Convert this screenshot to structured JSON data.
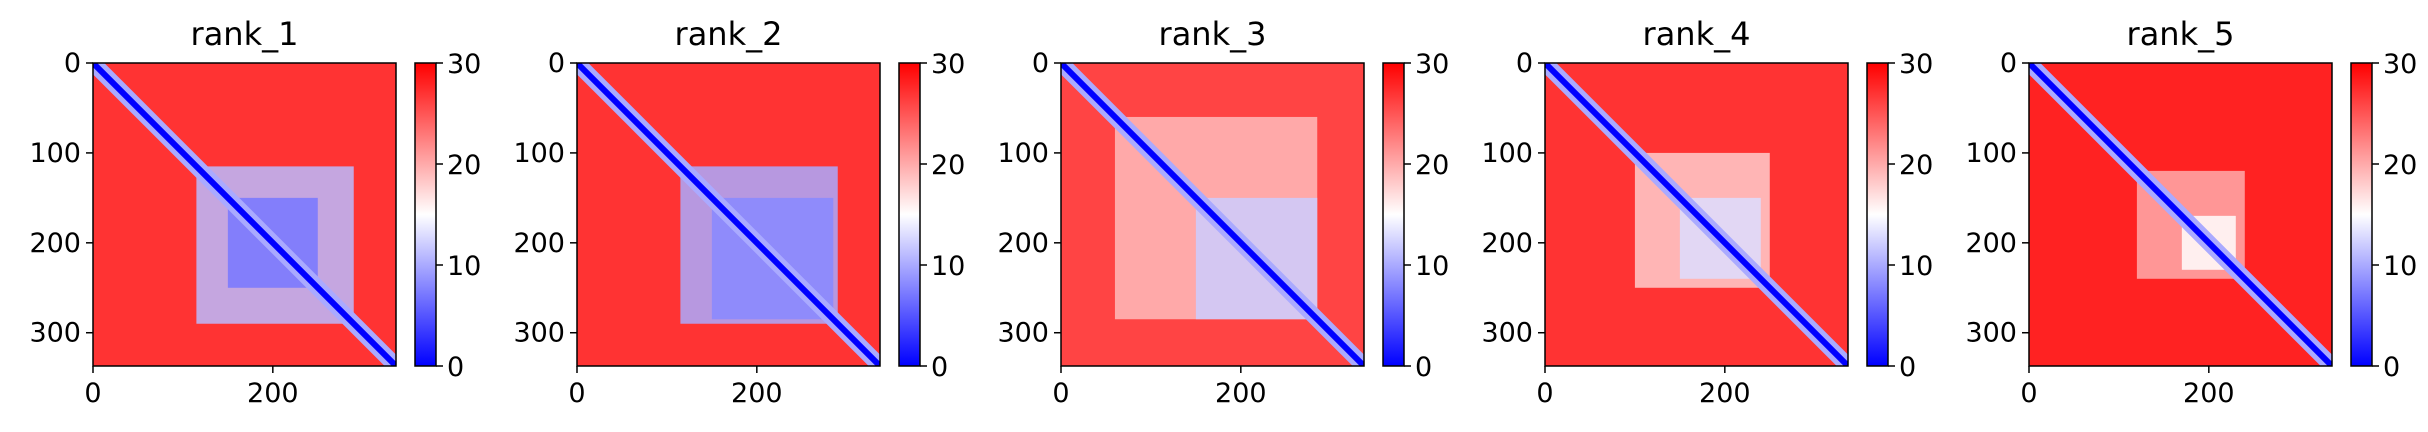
{
  "chart_data": {
    "type": "heatmap",
    "colormap": {
      "name": "bwr",
      "colors": [
        "#0000ff",
        "#ffffff",
        "#ff0000"
      ],
      "range": [
        0,
        30
      ],
      "ticks": [
        0,
        10,
        20,
        30
      ]
    },
    "matrix_size": 337,
    "axes": {
      "x_ticks": [
        0,
        200
      ],
      "y_ticks": [
        0,
        100,
        200,
        300
      ],
      "xlim": [
        0,
        337
      ],
      "ylim": [
        337,
        0
      ]
    },
    "panels": [
      {
        "title": "rank_1",
        "background_level": 27,
        "blocks": [
          {
            "x": [
              115,
              290
            ],
            "y": [
              115,
              290
            ],
            "level": 11
          },
          {
            "x": [
              150,
              250
            ],
            "y": [
              150,
              250
            ],
            "level": 7
          }
        ]
      },
      {
        "title": "rank_2",
        "background_level": 27,
        "blocks": [
          {
            "x": [
              115,
              290
            ],
            "y": [
              115,
              290
            ],
            "level": 10
          },
          {
            "x": [
              150,
              285
            ],
            "y": [
              150,
              285
            ],
            "level": 8
          }
        ]
      },
      {
        "title": "rank_3",
        "background_level": 26,
        "blocks": [
          {
            "x": [
              60,
              285
            ],
            "y": [
              60,
              285
            ],
            "level": 19
          },
          {
            "x": [
              150,
              285
            ],
            "y": [
              150,
              285
            ],
            "level": 12
          }
        ]
      },
      {
        "title": "rank_4",
        "background_level": 27,
        "blocks": [
          {
            "x": [
              100,
              250
            ],
            "y": [
              100,
              250
            ],
            "level": 18
          },
          {
            "x": [
              150,
              240
            ],
            "y": [
              150,
              240
            ],
            "level": 13
          }
        ]
      },
      {
        "title": "rank_5",
        "background_level": 28,
        "blocks": [
          {
            "x": [
              120,
              240
            ],
            "y": [
              120,
              240
            ],
            "level": 20
          },
          {
            "x": [
              170,
              230
            ],
            "y": [
              170,
              230
            ],
            "level": 15
          }
        ]
      }
    ]
  }
}
